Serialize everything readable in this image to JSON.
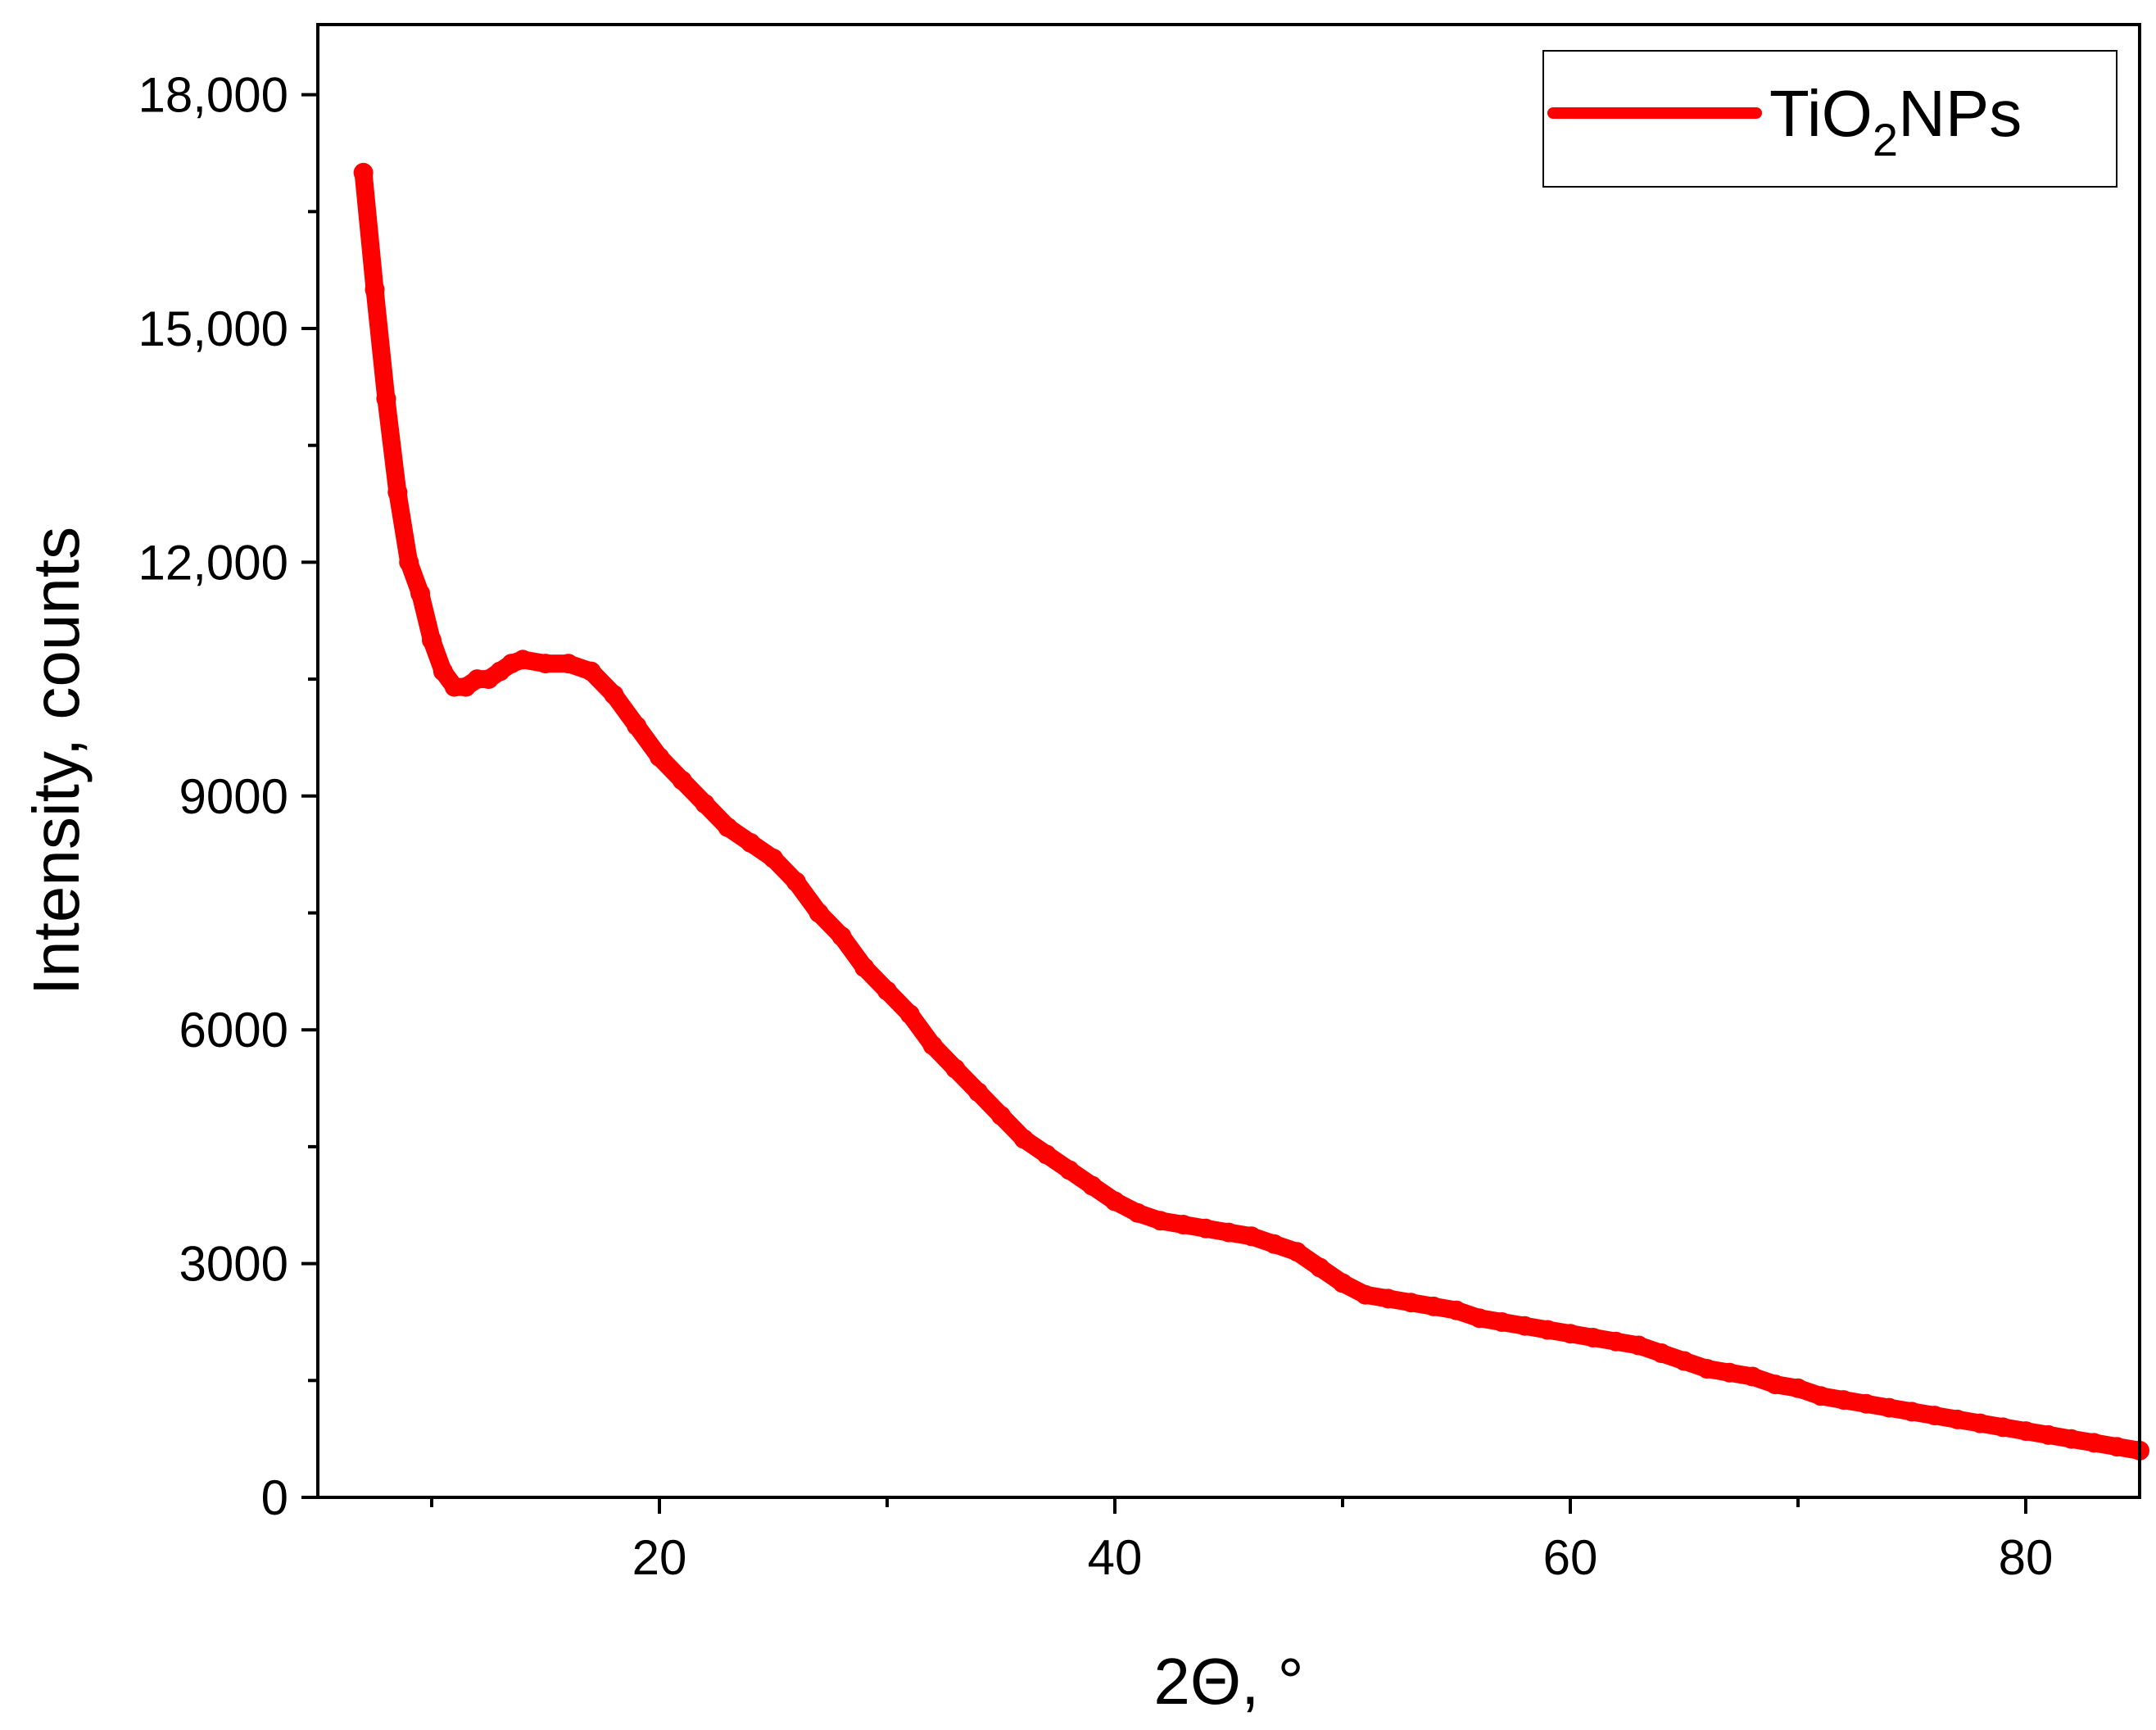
{
  "chart_data": {
    "type": "line",
    "xlabel": "2Θ, °",
    "ylabel": "Intensity, counts",
    "xlim": [
      5,
      85
    ],
    "ylim": [
      0,
      18900
    ],
    "x_ticks": [
      20,
      40,
      60,
      80
    ],
    "x_tick_labels": [
      "20",
      "40",
      "60",
      "80"
    ],
    "x_minor_ticks": [
      10,
      30,
      50,
      70
    ],
    "y_ticks": [
      0,
      3000,
      6000,
      9000,
      12000,
      15000,
      18000
    ],
    "y_tick_labels": [
      "0",
      "3000",
      "6000",
      "9000",
      "12,000",
      "15,000",
      "18,000"
    ],
    "y_minor_ticks": [
      1500,
      4500,
      7500,
      10500,
      13500,
      16500
    ],
    "grid": false,
    "legend_position": "top-right",
    "series": [
      {
        "name_main": "TiO",
        "name_sub": "2",
        "name_tail": "NPs",
        "color": "#ff0000",
        "x": [
          7.0,
          7.5,
          8.0,
          8.5,
          9.0,
          9.5,
          10.0,
          10.5,
          11.0,
          11.5,
          12.0,
          12.5,
          13.0,
          13.5,
          14.0,
          15.0,
          16.0,
          17.0,
          18.0,
          19.0,
          20.0,
          21.0,
          22.0,
          23.0,
          24.0,
          25.0,
          26.0,
          27.0,
          28.0,
          29.0,
          30.0,
          31.0,
          32.0,
          33.0,
          34.0,
          35.0,
          36.0,
          37.0,
          38.0,
          39.0,
          40.0,
          41.0,
          42.0,
          43.0,
          44.0,
          45.0,
          46.0,
          47.0,
          48.0,
          49.0,
          50.0,
          51.0,
          52.0,
          53.0,
          54.0,
          55.0,
          56.0,
          57.0,
          58.0,
          59.0,
          60.0,
          61.0,
          62.0,
          63.0,
          64.0,
          65.0,
          66.0,
          67.0,
          68.0,
          69.0,
          70.0,
          71.0,
          72.0,
          73.0,
          74.0,
          75.0,
          76.0,
          77.0,
          78.0,
          79.0,
          80.0,
          81.0,
          82.0,
          83.0,
          84.0,
          85.0
        ],
        "y": [
          17000,
          15500,
          14100,
          12900,
          12000,
          11600,
          11000,
          10600,
          10400,
          10400,
          10500,
          10500,
          10600,
          10700,
          10750,
          10700,
          10700,
          10600,
          10300,
          9900,
          9500,
          9200,
          8900,
          8600,
          8400,
          8200,
          7900,
          7500,
          7200,
          6800,
          6500,
          6200,
          5800,
          5500,
          5200,
          4900,
          4600,
          4400,
          4200,
          4000,
          3800,
          3650,
          3550,
          3500,
          3450,
          3400,
          3350,
          3250,
          3150,
          2950,
          2750,
          2600,
          2550,
          2500,
          2450,
          2400,
          2300,
          2250,
          2200,
          2150,
          2100,
          2050,
          2000,
          1950,
          1850,
          1750,
          1650,
          1600,
          1550,
          1450,
          1400,
          1300,
          1250,
          1200,
          1150,
          1100,
          1050,
          1000,
          950,
          900,
          850,
          800,
          750,
          700,
          650,
          600
        ]
      }
    ]
  }
}
